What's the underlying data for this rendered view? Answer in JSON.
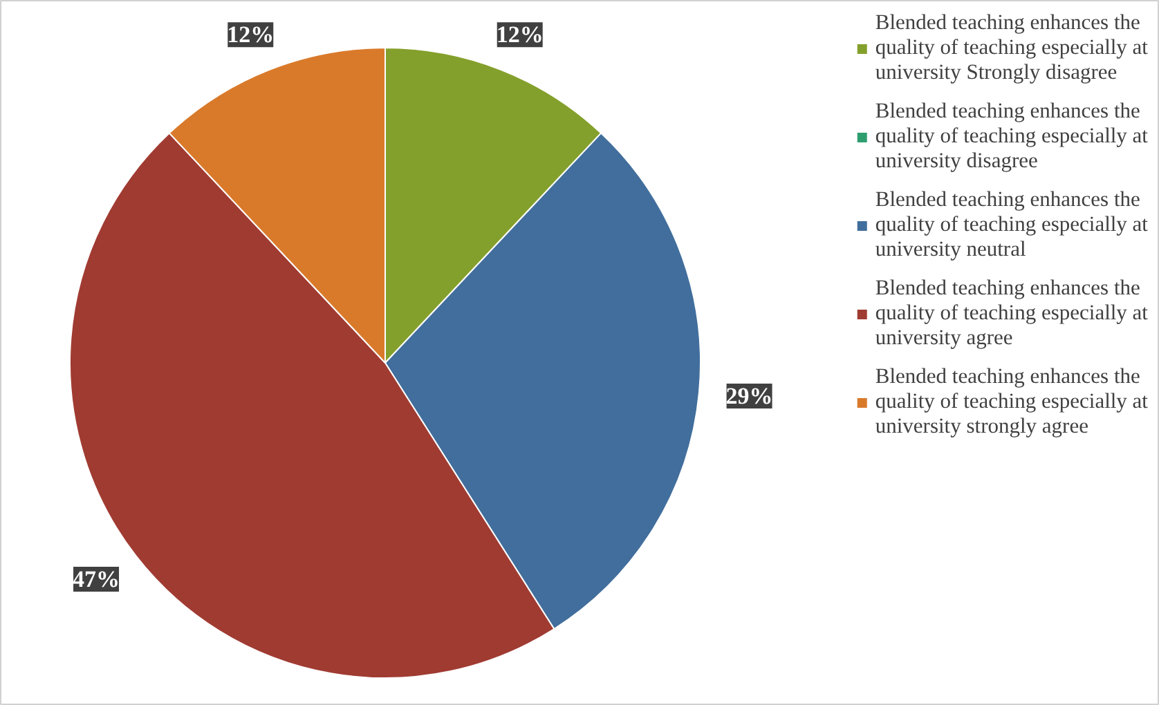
{
  "chart_data": {
    "type": "pie",
    "categories": [
      "Blended teaching enhances the quality of teaching especially at university Strongly disagree",
      "Blended teaching enhances the quality of teaching especially at university disagree",
      "Blended teaching enhances the quality of teaching especially at university neutral",
      "Blended teaching enhances the quality of teaching especially at university agree",
      "Blended teaching enhances the quality of teaching especially at university strongly agree"
    ],
    "values": [
      12,
      0,
      29,
      47,
      12
    ],
    "colors": [
      "#84a02c",
      "#2f9e6f",
      "#416e9c",
      "#a03b32",
      "#d97a2b"
    ],
    "value_labels": [
      "12%",
      null,
      "29%",
      "47%",
      "12%"
    ],
    "legend": "right"
  }
}
